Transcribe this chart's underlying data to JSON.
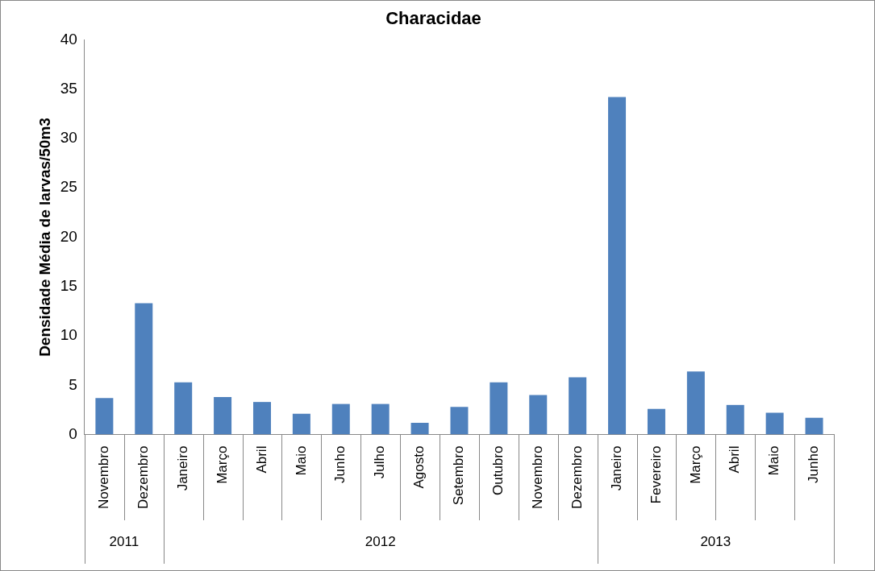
{
  "chart_data": {
    "type": "bar",
    "title": "Characidae",
    "ylabel": "Densidade Média de larvas/50m3",
    "categories": [
      "Novembro",
      "Dezembro",
      "Janeiro",
      "Março",
      "Abril",
      "Maio",
      "Junho",
      "Julho",
      "Agosto",
      "Setembro",
      "Outubro",
      "Novembro",
      "Dezembro",
      "Janeiro",
      "Fevereiro",
      "Março",
      "Abril",
      "Maio",
      "Junho"
    ],
    "values": [
      3.7,
      13.3,
      5.3,
      3.8,
      3.3,
      2.1,
      3.1,
      3.1,
      1.2,
      2.8,
      5.3,
      4.0,
      5.8,
      34.2,
      2.6,
      6.4,
      3.0,
      2.2,
      1.7
    ],
    "color": "#4f81bd",
    "ylim": [
      0,
      40
    ],
    "yticks": [
      0,
      5,
      10,
      15,
      20,
      25,
      30,
      35,
      40
    ],
    "grid": false,
    "legend": false,
    "annotations": [
      "2011",
      "2012",
      "2013"
    ]
  }
}
